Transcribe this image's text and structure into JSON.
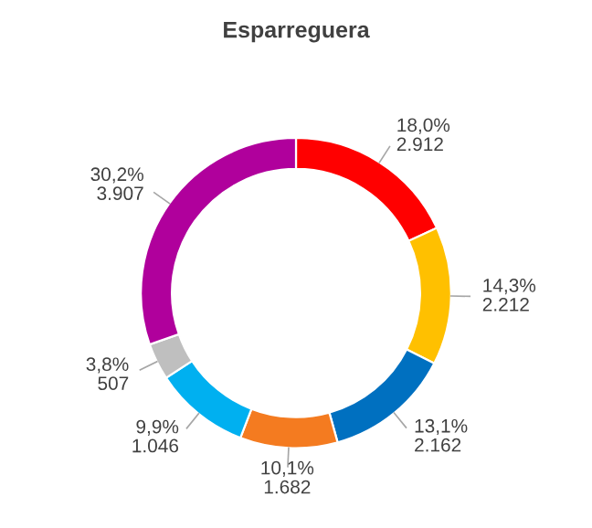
{
  "chart_data": {
    "type": "donut",
    "title": "Esparreguera",
    "categories": [
      null,
      null,
      null,
      null,
      null,
      null,
      null
    ],
    "values": [
      18.0,
      14.3,
      13.1,
      10.1,
      9.9,
      3.8,
      30.2
    ],
    "value_labels": [
      "18,0%\n2.912",
      "14,3%\n2.212",
      "13,1%\n2.162",
      "10,1%\n1.682",
      "9,9%\n1.046",
      "3,8%\n507",
      "30,2%\n3.907"
    ],
    "colors": [
      "#ff0000",
      "#ffc000",
      "#0070c0",
      "#f47b20",
      "#00b0f0",
      "#bfbfbf",
      "#b0009c"
    ],
    "legend": false
  }
}
